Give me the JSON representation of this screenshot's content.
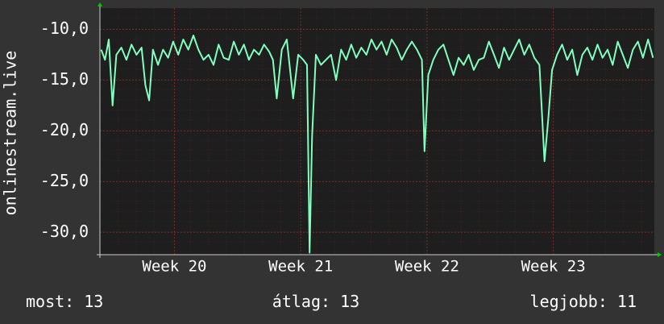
{
  "chart_data": {
    "type": "line",
    "y_label": "onlinestream.live",
    "color": "#80ffbf",
    "grid": true,
    "x": [
      19.42,
      19.45,
      19.48,
      19.51,
      19.54,
      19.58,
      19.62,
      19.66,
      19.7,
      19.74,
      19.77,
      19.8,
      19.83,
      19.87,
      19.91,
      19.95,
      19.99,
      20.03,
      20.07,
      20.11,
      20.15,
      20.19,
      20.23,
      20.27,
      20.31,
      20.35,
      20.39,
      20.43,
      20.47,
      20.51,
      20.55,
      20.59,
      20.63,
      20.67,
      20.71,
      20.75,
      20.78,
      20.81,
      20.85,
      20.89,
      20.94,
      20.98,
      21.02,
      21.05,
      21.07,
      21.09,
      21.12,
      21.16,
      21.2,
      21.24,
      21.28,
      21.32,
      21.36,
      21.4,
      21.44,
      21.48,
      21.52,
      21.56,
      21.6,
      21.64,
      21.68,
      21.72,
      21.76,
      21.8,
      21.84,
      21.88,
      21.92,
      21.96,
      21.98,
      22.01,
      22.05,
      22.09,
      22.13,
      22.17,
      22.21,
      22.25,
      22.29,
      22.33,
      22.37,
      22.41,
      22.45,
      22.49,
      22.53,
      22.57,
      22.61,
      22.65,
      22.69,
      22.73,
      22.77,
      22.81,
      22.85,
      22.89,
      22.93,
      22.96,
      22.99,
      23.03,
      23.07,
      23.11,
      23.15,
      23.19,
      23.23,
      23.27,
      23.31,
      23.35,
      23.39,
      23.43,
      23.47,
      23.51,
      23.55,
      23.59,
      23.63,
      23.67,
      23.71,
      23.75,
      23.79
    ],
    "values": [
      -12.0,
      -13.0,
      -11.0,
      -17.5,
      -12.5,
      -11.8,
      -13.0,
      -11.5,
      -12.5,
      -11.8,
      -15.5,
      -17.0,
      -12.0,
      -13.5,
      -12.0,
      -12.8,
      -11.2,
      -12.5,
      -11.0,
      -12.0,
      -10.6,
      -12.0,
      -13.0,
      -12.5,
      -13.5,
      -11.5,
      -12.8,
      -13.0,
      -11.2,
      -12.5,
      -11.5,
      -13.0,
      -12.0,
      -12.5,
      -11.5,
      -12.2,
      -13.0,
      -16.8,
      -12.0,
      -11.0,
      -16.8,
      -12.5,
      -13.0,
      -13.5,
      -32.0,
      -20.5,
      -12.5,
      -13.5,
      -13.0,
      -12.5,
      -15.0,
      -12.0,
      -13.0,
      -11.5,
      -12.8,
      -11.8,
      -12.5,
      -11.0,
      -12.0,
      -11.2,
      -12.5,
      -11.0,
      -11.8,
      -13.0,
      -12.0,
      -11.2,
      -12.0,
      -13.0,
      -22.0,
      -14.5,
      -13.0,
      -12.0,
      -11.5,
      -13.0,
      -14.5,
      -12.8,
      -13.5,
      -12.5,
      -14.0,
      -13.0,
      -12.8,
      -11.2,
      -12.5,
      -13.8,
      -11.8,
      -13.0,
      -12.0,
      -11.0,
      -12.5,
      -11.5,
      -12.8,
      -13.5,
      -23.0,
      -18.8,
      -14.0,
      -12.5,
      -11.5,
      -13.0,
      -12.0,
      -14.5,
      -12.5,
      -11.8,
      -13.0,
      -11.5,
      -12.8,
      -12.0,
      -13.5,
      -11.2,
      -12.5,
      -13.8,
      -12.0,
      -11.2,
      -12.8,
      -11.0,
      -12.8
    ],
    "xlim": [
      19.41,
      23.8
    ],
    "xticks": [
      {
        "value": 20,
        "label": "Week 20"
      },
      {
        "value": 21,
        "label": "Week 21"
      },
      {
        "value": 22,
        "label": "Week 22"
      },
      {
        "value": 23,
        "label": "Week 23"
      }
    ],
    "ylim": [
      -32.2,
      -7.9
    ],
    "yticks": [
      {
        "value": -10,
        "label": "-10,0"
      },
      {
        "value": -15,
        "label": "-15,0"
      },
      {
        "value": -20,
        "label": "-20,0"
      },
      {
        "value": -25,
        "label": "-25,0"
      },
      {
        "value": -30,
        "label": "-30,0"
      }
    ],
    "stats": [
      {
        "label": "most:",
        "value": 13
      },
      {
        "label": "átlag:",
        "value": 13
      },
      {
        "label": "legjobb:",
        "value": 11
      }
    ]
  }
}
